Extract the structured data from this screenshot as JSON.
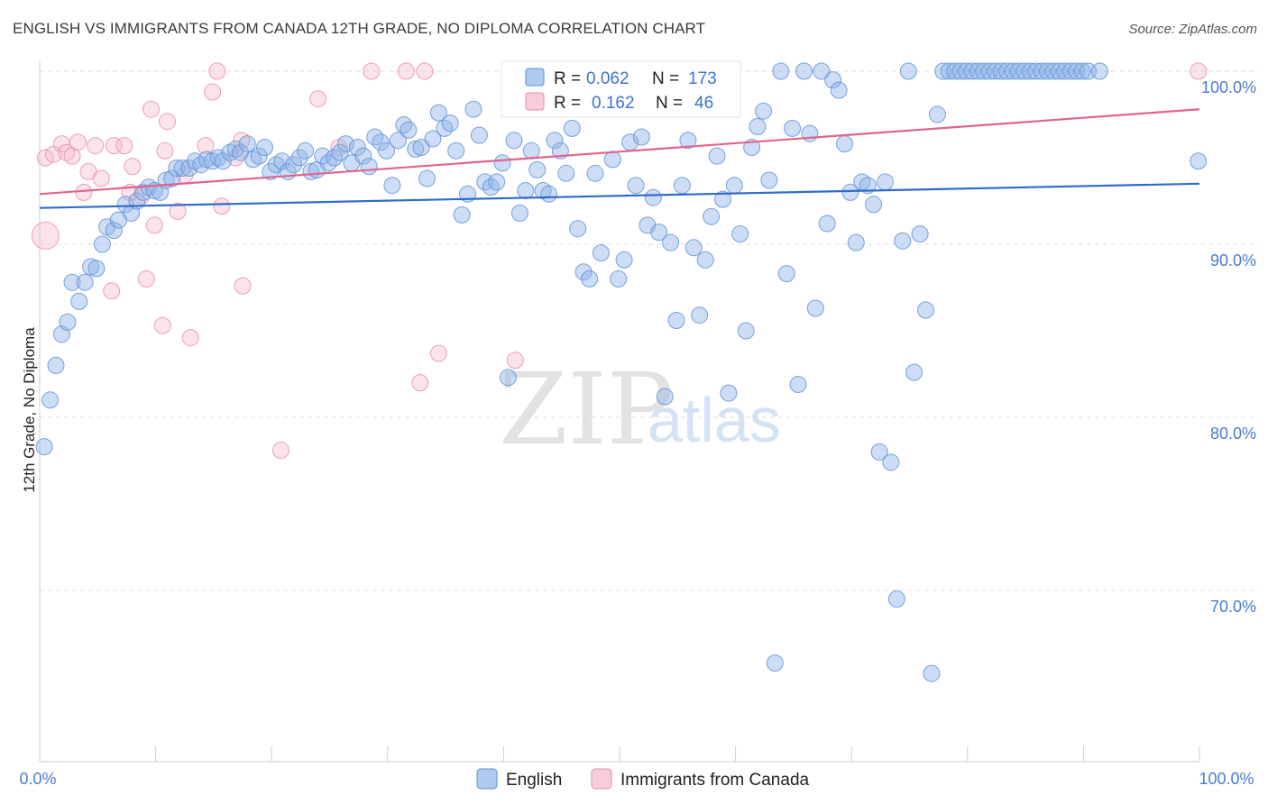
{
  "header": {
    "title": "ENGLISH VS IMMIGRANTS FROM CANADA 12TH GRADE, NO DIPLOMA CORRELATION CHART",
    "source": "Source: ZipAtlas.com"
  },
  "watermark": {
    "zip": "ZIP",
    "atlas": "atlas"
  },
  "chart_data": {
    "type": "scatter",
    "title": "ENGLISH VS IMMIGRANTS FROM CANADA 12TH GRADE, NO DIPLOMA CORRELATION CHART",
    "xlabel": "",
    "ylabel": "12th Grade, No Diploma",
    "xlim": [
      0,
      100
    ],
    "ylim": [
      60.5,
      102
    ],
    "x_tick_labels": [
      "0.0%",
      "100.0%"
    ],
    "y_ticks": [
      70,
      80,
      90,
      100
    ],
    "y_tick_labels": [
      "70.0%",
      "80.0%",
      "90.0%",
      "100.0%"
    ],
    "grid": "horizontal dashed",
    "legend_position": "bottom-center",
    "series": [
      {
        "name": "English",
        "color": "#8fb4e8",
        "stroke": "#5b8fd6",
        "trend_color": "#2e6cc9",
        "R": "0.062",
        "N": "173",
        "trend": [
          [
            0,
            92.1
          ],
          [
            100,
            93.5
          ]
        ],
        "points": [
          [
            0.4,
            78.3
          ],
          [
            0.9,
            81.0
          ],
          [
            1.4,
            83.0
          ],
          [
            1.9,
            84.8
          ],
          [
            2.4,
            85.5
          ],
          [
            2.8,
            87.8
          ],
          [
            3.4,
            86.7
          ],
          [
            3.9,
            87.8
          ],
          [
            4.4,
            88.7
          ],
          [
            4.9,
            88.6
          ],
          [
            5.4,
            90.0
          ],
          [
            5.8,
            91.0
          ],
          [
            6.4,
            90.8
          ],
          [
            6.8,
            91.4
          ],
          [
            7.4,
            92.3
          ],
          [
            7.9,
            91.8
          ],
          [
            8.4,
            92.5
          ],
          [
            8.9,
            93.0
          ],
          [
            9.4,
            93.3
          ],
          [
            9.9,
            93.1
          ],
          [
            10.4,
            93.0
          ],
          [
            10.9,
            93.7
          ],
          [
            11.4,
            93.8
          ],
          [
            11.8,
            94.4
          ],
          [
            12.3,
            94.4
          ],
          [
            12.9,
            94.4
          ],
          [
            13.4,
            94.8
          ],
          [
            13.9,
            94.6
          ],
          [
            14.4,
            94.9
          ],
          [
            14.9,
            94.8
          ],
          [
            15.4,
            95.0
          ],
          [
            15.8,
            94.8
          ],
          [
            16.4,
            95.3
          ],
          [
            16.9,
            95.5
          ],
          [
            17.3,
            95.3
          ],
          [
            17.9,
            95.8
          ],
          [
            18.4,
            94.9
          ],
          [
            18.9,
            95.1
          ],
          [
            19.4,
            95.6
          ],
          [
            19.9,
            94.2
          ],
          [
            20.4,
            94.6
          ],
          [
            20.9,
            94.8
          ],
          [
            21.4,
            94.2
          ],
          [
            21.9,
            94.6
          ],
          [
            22.4,
            95.0
          ],
          [
            22.9,
            95.4
          ],
          [
            23.4,
            94.2
          ],
          [
            23.9,
            94.3
          ],
          [
            24.4,
            95.1
          ],
          [
            24.9,
            94.7
          ],
          [
            25.4,
            95.0
          ],
          [
            25.9,
            95.3
          ],
          [
            26.4,
            95.8
          ],
          [
            26.9,
            94.7
          ],
          [
            27.4,
            95.6
          ],
          [
            27.9,
            95.1
          ],
          [
            28.4,
            94.5
          ],
          [
            28.9,
            96.2
          ],
          [
            29.4,
            95.9
          ],
          [
            29.9,
            95.4
          ],
          [
            30.4,
            93.4
          ],
          [
            30.9,
            96.0
          ],
          [
            31.4,
            96.9
          ],
          [
            31.8,
            96.6
          ],
          [
            32.4,
            95.5
          ],
          [
            32.9,
            95.6
          ],
          [
            33.4,
            93.8
          ],
          [
            33.9,
            96.1
          ],
          [
            34.4,
            97.6
          ],
          [
            34.9,
            96.7
          ],
          [
            35.4,
            97.0
          ],
          [
            35.9,
            95.4
          ],
          [
            36.4,
            91.7
          ],
          [
            36.9,
            92.9
          ],
          [
            37.4,
            97.8
          ],
          [
            37.9,
            96.3
          ],
          [
            38.4,
            93.6
          ],
          [
            38.9,
            93.3
          ],
          [
            39.4,
            93.6
          ],
          [
            39.9,
            94.7
          ],
          [
            40.4,
            82.3
          ],
          [
            40.9,
            96.0
          ],
          [
            41.4,
            91.8
          ],
          [
            41.9,
            93.1
          ],
          [
            42.4,
            95.4
          ],
          [
            42.9,
            94.3
          ],
          [
            43.4,
            93.1
          ],
          [
            43.9,
            92.9
          ],
          [
            44.4,
            96.0
          ],
          [
            44.9,
            95.4
          ],
          [
            45.4,
            94.1
          ],
          [
            45.9,
            96.7
          ],
          [
            46.4,
            90.9
          ],
          [
            46.9,
            88.4
          ],
          [
            47.4,
            88.0
          ],
          [
            47.9,
            94.1
          ],
          [
            48.4,
            89.5
          ],
          [
            48.9,
            97.9
          ],
          [
            49.4,
            94.9
          ],
          [
            49.9,
            88.0
          ],
          [
            50.4,
            89.1
          ],
          [
            50.9,
            95.9
          ],
          [
            51.4,
            93.4
          ],
          [
            51.9,
            96.2
          ],
          [
            52.4,
            91.1
          ],
          [
            52.9,
            92.7
          ],
          [
            53.4,
            90.7
          ],
          [
            53.9,
            81.2
          ],
          [
            54.4,
            90.1
          ],
          [
            54.9,
            85.6
          ],
          [
            55.4,
            93.4
          ],
          [
            55.9,
            96.0
          ],
          [
            56.4,
            89.8
          ],
          [
            56.9,
            85.9
          ],
          [
            57.4,
            89.1
          ],
          [
            57.9,
            91.6
          ],
          [
            58.4,
            95.1
          ],
          [
            58.9,
            92.6
          ],
          [
            59.4,
            81.4
          ],
          [
            59.9,
            93.4
          ],
          [
            60.4,
            90.6
          ],
          [
            60.9,
            85.0
          ],
          [
            61.4,
            95.6
          ],
          [
            61.9,
            96.8
          ],
          [
            62.4,
            97.7
          ],
          [
            62.9,
            93.7
          ],
          [
            63.4,
            65.8
          ],
          [
            63.9,
            100.0
          ],
          [
            64.4,
            88.3
          ],
          [
            64.9,
            96.7
          ],
          [
            65.4,
            81.9
          ],
          [
            65.9,
            100.0
          ],
          [
            66.4,
            96.4
          ],
          [
            66.9,
            86.3
          ],
          [
            67.4,
            100.0
          ],
          [
            67.9,
            91.2
          ],
          [
            68.4,
            99.5
          ],
          [
            68.9,
            98.9
          ],
          [
            69.4,
            95.8
          ],
          [
            69.9,
            93.0
          ],
          [
            70.4,
            90.1
          ],
          [
            70.9,
            93.6
          ],
          [
            71.4,
            93.4
          ],
          [
            71.9,
            92.3
          ],
          [
            72.4,
            78.0
          ],
          [
            72.9,
            93.6
          ],
          [
            73.4,
            77.4
          ],
          [
            73.9,
            69.5
          ],
          [
            74.4,
            90.2
          ],
          [
            74.9,
            100.0
          ],
          [
            75.4,
            82.6
          ],
          [
            75.9,
            90.6
          ],
          [
            76.4,
            86.2
          ],
          [
            76.9,
            65.2
          ],
          [
            77.4,
            97.5
          ],
          [
            77.9,
            100.0
          ],
          [
            78.4,
            100.0
          ],
          [
            78.9,
            100.0
          ],
          [
            79.4,
            100.0
          ],
          [
            79.9,
            100.0
          ],
          [
            80.4,
            100.0
          ],
          [
            80.9,
            100.0
          ],
          [
            81.4,
            100.0
          ],
          [
            81.9,
            100.0
          ],
          [
            82.4,
            100.0
          ],
          [
            82.9,
            100.0
          ],
          [
            83.4,
            100.0
          ],
          [
            83.9,
            100.0
          ],
          [
            84.4,
            100.0
          ],
          [
            84.9,
            100.0
          ],
          [
            85.4,
            100.0
          ],
          [
            85.9,
            100.0
          ],
          [
            86.4,
            100.0
          ],
          [
            86.9,
            100.0
          ],
          [
            87.4,
            100.0
          ],
          [
            87.9,
            100.0
          ],
          [
            88.4,
            100.0
          ],
          [
            88.9,
            100.0
          ],
          [
            89.4,
            100.0
          ],
          [
            89.9,
            100.0
          ],
          [
            90.4,
            100.0
          ],
          [
            91.4,
            100.0
          ],
          [
            99.9,
            94.8
          ]
        ]
      },
      {
        "name": "Immigrants from Canada",
        "color": "#f5b8ca",
        "stroke": "#e88aa5",
        "trend_color": "#e0648c",
        "R": "0.162",
        "N": "46",
        "trend": [
          [
            0,
            92.9
          ],
          [
            100,
            97.8
          ]
        ],
        "points": [
          [
            0.5,
            95.0
          ],
          [
            1.2,
            95.2
          ],
          [
            1.9,
            95.8
          ],
          [
            2.3,
            95.3
          ],
          [
            2.8,
            95.1
          ],
          [
            3.3,
            95.9
          ],
          [
            3.8,
            93.0
          ],
          [
            4.2,
            94.2
          ],
          [
            4.8,
            95.7
          ],
          [
            5.3,
            93.8
          ],
          [
            6.2,
            87.3
          ],
          [
            6.4,
            95.7
          ],
          [
            7.3,
            95.7
          ],
          [
            7.8,
            93.0
          ],
          [
            8.0,
            94.5
          ],
          [
            8.8,
            92.8
          ],
          [
            9.2,
            88.0
          ],
          [
            9.6,
            97.8
          ],
          [
            9.9,
            91.1
          ],
          [
            10.6,
            85.3
          ],
          [
            10.8,
            95.4
          ],
          [
            11.0,
            97.1
          ],
          [
            11.9,
            91.9
          ],
          [
            12.5,
            94.0
          ],
          [
            13.0,
            84.6
          ],
          [
            14.3,
            95.7
          ],
          [
            14.9,
            98.8
          ],
          [
            15.3,
            100.0
          ],
          [
            15.7,
            92.2
          ],
          [
            16.9,
            95.0
          ],
          [
            17.4,
            96.0
          ],
          [
            17.5,
            87.6
          ],
          [
            20.8,
            78.1
          ],
          [
            24.0,
            98.4
          ],
          [
            25.8,
            95.6
          ],
          [
            28.6,
            100.0
          ],
          [
            31.6,
            100.0
          ],
          [
            32.8,
            82.0
          ],
          [
            33.2,
            100.0
          ],
          [
            34.4,
            83.7
          ],
          [
            41.0,
            83.3
          ],
          [
            44.4,
            100.0
          ],
          [
            46.4,
            100.0
          ],
          [
            99.9,
            100.0
          ],
          [
            0.5,
            90.5
          ]
        ],
        "point_sizes": "last point is larger (r≈15)"
      }
    ]
  }
}
